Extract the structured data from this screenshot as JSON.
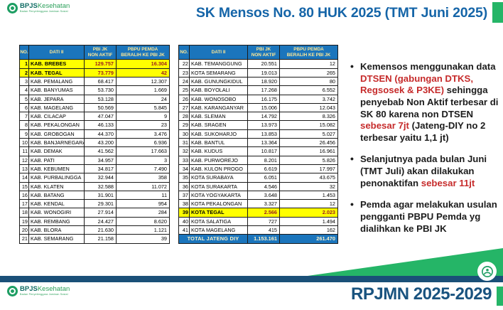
{
  "logo": {
    "brand_bold": "BPJS",
    "brand_light": "Kesehatan",
    "tagline": "Badan Penyelenggara Jaminan Sosial"
  },
  "header": {
    "title": "SK Mensos No. 80 HUK 2025 (TMT Juni 2025)"
  },
  "tables": [
    {
      "columns": [
        "NO.",
        "DATI II",
        "PBI JK\nNON AKTIF",
        "PBPU PEMDA\nBERALIH KE PBI JK"
      ],
      "rows": [
        {
          "n": "1",
          "name": "KAB. BREBES",
          "pbi": "129.757",
          "pbpu": "16.304",
          "hl": true
        },
        {
          "n": "2",
          "name": "KAB. TEGAL",
          "pbi": "73.779",
          "pbpu": "42",
          "hl": true
        },
        {
          "n": "3",
          "name": "KAB. PEMALANG",
          "pbi": "68.417",
          "pbpu": "12.307",
          "hl": false
        },
        {
          "n": "4",
          "name": "KAB. BANYUMAS",
          "pbi": "53.730",
          "pbpu": "1.669",
          "hl": false
        },
        {
          "n": "5",
          "name": "KAB. JEPARA",
          "pbi": "53.128",
          "pbpu": "24",
          "hl": false
        },
        {
          "n": "6",
          "name": "KAB. MAGELANG",
          "pbi": "50.569",
          "pbpu": "5.845",
          "hl": false
        },
        {
          "n": "7",
          "name": "KAB. CILACAP",
          "pbi": "47.047",
          "pbpu": "9",
          "hl": false
        },
        {
          "n": "8",
          "name": "KAB. PEKALONGAN",
          "pbi": "46.133",
          "pbpu": "23",
          "hl": false
        },
        {
          "n": "9",
          "name": "KAB. GROBOGAN",
          "pbi": "44.370",
          "pbpu": "3.476",
          "hl": false
        },
        {
          "n": "10",
          "name": "KAB. BANJARNEGARA",
          "pbi": "43.200",
          "pbpu": "6.936",
          "hl": false
        },
        {
          "n": "11",
          "name": "KAB. DEMAK",
          "pbi": "41.562",
          "pbpu": "17.663",
          "hl": false
        },
        {
          "n": "12",
          "name": "KAB. PATI",
          "pbi": "34.957",
          "pbpu": "3",
          "hl": false
        },
        {
          "n": "13",
          "name": "KAB. KEBUMEN",
          "pbi": "34.817",
          "pbpu": "7.490",
          "hl": false
        },
        {
          "n": "14",
          "name": "KAB. PURBALINGGA",
          "pbi": "32.944",
          "pbpu": "358",
          "hl": false
        },
        {
          "n": "15",
          "name": "KAB. KLATEN",
          "pbi": "32.588",
          "pbpu": "11.072",
          "hl": false
        },
        {
          "n": "16",
          "name": "KAB. BATANG",
          "pbi": "31.901",
          "pbpu": "11",
          "hl": false
        },
        {
          "n": "17",
          "name": "KAB. KENDAL",
          "pbi": "29.301",
          "pbpu": "954",
          "hl": false
        },
        {
          "n": "18",
          "name": "KAB. WONOGIRI",
          "pbi": "27.914",
          "pbpu": "284",
          "hl": false
        },
        {
          "n": "19",
          "name": "KAB. REMBANG",
          "pbi": "24.427",
          "pbpu": "8.620",
          "hl": false
        },
        {
          "n": "20",
          "name": "KAB. BLORA",
          "pbi": "21.630",
          "pbpu": "1.121",
          "hl": false
        },
        {
          "n": "21",
          "name": "KAB. SEMARANG",
          "pbi": "21.158",
          "pbpu": "39",
          "hl": false
        }
      ]
    },
    {
      "columns": [
        "NO.",
        "DATI II",
        "PBI JK\nNON AKTIF",
        "PBPU PEMDA\nBERALIH KE PBI JK"
      ],
      "rows": [
        {
          "n": "22",
          "name": "KAB. TEMANGGUNG",
          "pbi": "20.551",
          "pbpu": "12",
          "hl": false
        },
        {
          "n": "23",
          "name": "KOTA SEMARANG",
          "pbi": "19.013",
          "pbpu": "265",
          "hl": false
        },
        {
          "n": "24",
          "name": "KAB. GUNUNGKIDUL",
          "pbi": "18.920",
          "pbpu": "80",
          "hl": false
        },
        {
          "n": "25",
          "name": "KAB. BOYOLALI",
          "pbi": "17.268",
          "pbpu": "6.552",
          "hl": false
        },
        {
          "n": "26",
          "name": "KAB. WONOSOBO",
          "pbi": "16.175",
          "pbpu": "3.742",
          "hl": false
        },
        {
          "n": "27",
          "name": "KAB. KARANGANYAR",
          "pbi": "15.006",
          "pbpu": "12.043",
          "hl": false
        },
        {
          "n": "28",
          "name": "KAB. SLEMAN",
          "pbi": "14.792",
          "pbpu": "8.326",
          "hl": false
        },
        {
          "n": "29",
          "name": "KAB. SRAGEN",
          "pbi": "13.973",
          "pbpu": "15.082",
          "hl": false
        },
        {
          "n": "30",
          "name": "KAB. SUKOHARJO",
          "pbi": "13.853",
          "pbpu": "5.027",
          "hl": false
        },
        {
          "n": "31",
          "name": "KAB. BANTUL",
          "pbi": "13.364",
          "pbpu": "26.456",
          "hl": false
        },
        {
          "n": "32",
          "name": "KAB. KUDUS",
          "pbi": "10.817",
          "pbpu": "16.961",
          "hl": false
        },
        {
          "n": "33",
          "name": "KAB. PURWOREJO",
          "pbi": "8.201",
          "pbpu": "5.826",
          "hl": false
        },
        {
          "n": "34",
          "name": "KAB. KULON PROGO",
          "pbi": "6.619",
          "pbpu": "17.997",
          "hl": false
        },
        {
          "n": "35",
          "name": "KOTA SURABAYA",
          "pbi": "6.051",
          "pbpu": "43.675",
          "hl": false
        },
        {
          "n": "36",
          "name": "KOTA SURAKARTA",
          "pbi": "4.546",
          "pbpu": "32",
          "hl": false
        },
        {
          "n": "37",
          "name": "KOTA YOGYAKARTA",
          "pbi": "3.648",
          "pbpu": "1.453",
          "hl": false
        },
        {
          "n": "38",
          "name": "KOTA PEKALONGAN",
          "pbi": "3.327",
          "pbpu": "12",
          "hl": false
        },
        {
          "n": "39",
          "name": "KOTA TEGAL",
          "pbi": "2.566",
          "pbpu": "2.023",
          "hl": true
        },
        {
          "n": "40",
          "name": "KOTA SALATIGA",
          "pbi": "727",
          "pbpu": "1.494",
          "hl": false
        },
        {
          "n": "41",
          "name": "KOTA MAGELANG",
          "pbi": "415",
          "pbpu": "162",
          "hl": false
        }
      ],
      "total": {
        "label": "TOTAL JATENG DIY",
        "pbi": "1.153.161",
        "pbpu": "261.470"
      }
    }
  ],
  "bullets": [
    {
      "segments": [
        {
          "t": "Kemensos menggunakan data ",
          "r": false
        },
        {
          "t": "DTSEN (gabungan DTKS, Regsosek & P3KE)",
          "r": true
        },
        {
          "t": " sehingga penyebab Non Aktif terbesar di SK 80 karena non DTSEN ",
          "r": false
        },
        {
          "t": "sebesar 7jt",
          "r": true
        },
        {
          "t": " (Jateng-DIY no 2 terbesar yaitu 1,1 jt)",
          "r": false
        }
      ]
    },
    {
      "segments": [
        {
          "t": "Selanjutnya pada bulan Juni (TMT Juli) akan dilakukan penonaktifan ",
          "r": false
        },
        {
          "t": "sebesar 11jt",
          "r": true
        }
      ]
    },
    {
      "segments": [
        {
          "t": "Pemda agar melakukan usulan pengganti PBPU Pemda yg dialihkan ke PBI JK",
          "r": false
        }
      ]
    }
  ],
  "footer": {
    "rpjmn_label": "RPJMN 2025-2029"
  },
  "colors": {
    "title_blue": "#1565A8",
    "table_header_blue": "#1B75BC",
    "header_text_yellow": "#FFE895",
    "highlight_yellow": "#FFFF00",
    "highlight_value_red": "#9B1B1E",
    "bullet_red": "#C62B2B",
    "footer_navy": "#1A5078",
    "brand_green": "#25B567"
  }
}
